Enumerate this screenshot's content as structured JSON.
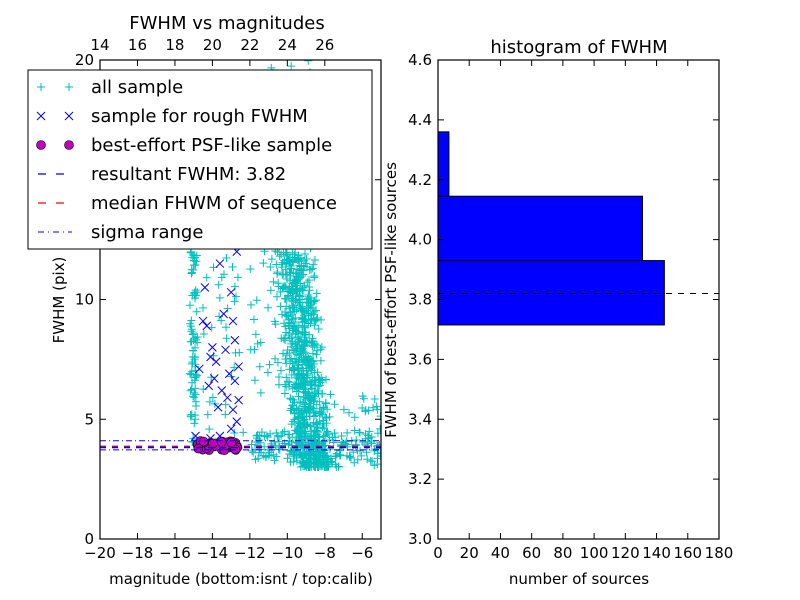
{
  "chart_data": [
    {
      "type": "scatter",
      "title": "FWHM vs magnitudes",
      "xlabel": "magnitude (bottom:isnt / top:calib)",
      "ylabel": "FWHM (pix)",
      "xlim": [
        -20,
        -5
      ],
      "ylim": [
        0,
        20
      ],
      "x_ticks": [
        "−20",
        "−18",
        "−16",
        "−14",
        "−12",
        "−10",
        "−8",
        "−6"
      ],
      "x_tick_values": [
        -20,
        -18,
        -16,
        -14,
        -12,
        -10,
        -8,
        -6
      ],
      "top_ticks": [
        "14",
        "16",
        "18",
        "20",
        "22",
        "24",
        "26"
      ],
      "top_tick_values": [
        14,
        16,
        18,
        20,
        22,
        24,
        26
      ],
      "top_offset": 34,
      "y_ticks": [
        "0",
        "5",
        "10",
        "15",
        "20"
      ],
      "y_tick_values": [
        0,
        5,
        10,
        15,
        20
      ],
      "legend": {
        "placement": "top-left",
        "entries": [
          {
            "label": "all sample",
            "color": "#00bfbf",
            "marker": "plus"
          },
          {
            "label": "sample for rough FWHM",
            "color": "#0000ff",
            "marker": "x"
          },
          {
            "label": "best-effort PSF-like sample",
            "color": "#bf00bf",
            "marker": "circle"
          },
          {
            "label": "resultant FWHM: 3.82",
            "color": "#0000ff",
            "marker": "dashed"
          },
          {
            "label": "median FHWM of sequence",
            "color": "#ff0000",
            "marker": "dashed"
          },
          {
            "label": "sigma range",
            "color": "#0000ff",
            "marker": "dashdot"
          }
        ]
      },
      "lines": {
        "resultant_fwhm": 3.82,
        "median_fwhm": 3.87,
        "sigma_low": 3.72,
        "sigma_high": 4.1
      },
      "series": [
        {
          "name": "all sample",
          "clusters": [
            {
              "x": [
                -15.2,
                -14.8
              ],
              "y": [
                4.0,
                13.0
              ],
              "n": 90
            },
            {
              "x": [
                -14.6,
                -12.3
              ],
              "y": [
                4.0,
                18.0
              ],
              "n": 70
            },
            {
              "x": [
                -12.0,
                -8.5
              ],
              "y": [
                6.0,
                20.0
              ],
              "n": 120
            },
            {
              "x": [
                -10.5,
                -7.5
              ],
              "y": [
                3.0,
                12.0
              ],
              "n": 750
            },
            {
              "x": [
                -12.0,
                -5.0
              ],
              "y": [
                3.2,
                4.5
              ],
              "n": 160
            },
            {
              "x": [
                -7.5,
                -5.0
              ],
              "y": [
                3.0,
                6.0
              ],
              "n": 40
            }
          ]
        },
        {
          "name": "sample for rough FWHM",
          "points": [
            [
              -14.9,
              4.3
            ],
            [
              -14.7,
              7.1
            ],
            [
              -14.5,
              9.1
            ],
            [
              -14.3,
              8.9
            ],
            [
              -14.2,
              6.4
            ],
            [
              -14.1,
              7.6
            ],
            [
              -14.0,
              8.0
            ],
            [
              -13.9,
              6.7
            ],
            [
              -13.8,
              7.4
            ],
            [
              -13.7,
              5.5
            ],
            [
              -13.6,
              11.5
            ],
            [
              -13.5,
              6.2
            ],
            [
              -13.4,
              9.4
            ],
            [
              -13.3,
              7.9
            ],
            [
              -13.2,
              5.9
            ],
            [
              -13.1,
              6.9
            ],
            [
              -13.0,
              4.6
            ],
            [
              -12.9,
              9.1
            ],
            [
              -12.9,
              5.4
            ],
            [
              -12.8,
              6.6
            ],
            [
              -12.7,
              4.9
            ],
            [
              -12.7,
              12.0
            ],
            [
              -12.6,
              7.2
            ],
            [
              -12.6,
              5.8
            ],
            [
              -13.4,
              12.8
            ],
            [
              -14.4,
              10.5
            ],
            [
              -13.0,
              10.3
            ],
            [
              -12.8,
              8.3
            ],
            [
              -14.1,
              4.2
            ],
            [
              -13.6,
              4.3
            ],
            [
              -12.9,
              13.3
            ]
          ]
        },
        {
          "name": "best-effort PSF-like sample",
          "x_range": [
            -14.8,
            -12.6
          ],
          "y_range": [
            3.7,
            4.1
          ],
          "n": 55
        }
      ]
    },
    {
      "type": "bar",
      "orientation": "horizontal",
      "title": "histogram of FWHM",
      "xlabel": "number of sources",
      "ylabel": "FWHM of best-effort PSF-like sources",
      "xlim": [
        0,
        180
      ],
      "ylim": [
        3.0,
        4.6
      ],
      "x_ticks": [
        "0",
        "20",
        "40",
        "60",
        "80",
        "100",
        "120",
        "140",
        "160",
        "180"
      ],
      "x_tick_values": [
        0,
        20,
        40,
        60,
        80,
        100,
        120,
        140,
        160,
        180
      ],
      "y_ticks": [
        "3.0",
        "3.2",
        "3.4",
        "3.6",
        "3.8",
        "4.0",
        "4.2",
        "4.4",
        "4.6"
      ],
      "y_tick_values": [
        3.0,
        3.2,
        3.4,
        3.6,
        3.8,
        4.0,
        4.2,
        4.4,
        4.6
      ],
      "bins": [
        [
          3.715,
          3.93
        ],
        [
          3.93,
          4.145
        ],
        [
          4.145,
          4.36
        ]
      ],
      "values": [
        145,
        131,
        7
      ],
      "bar_color": "#0000ff",
      "reference_line": 3.82
    }
  ]
}
